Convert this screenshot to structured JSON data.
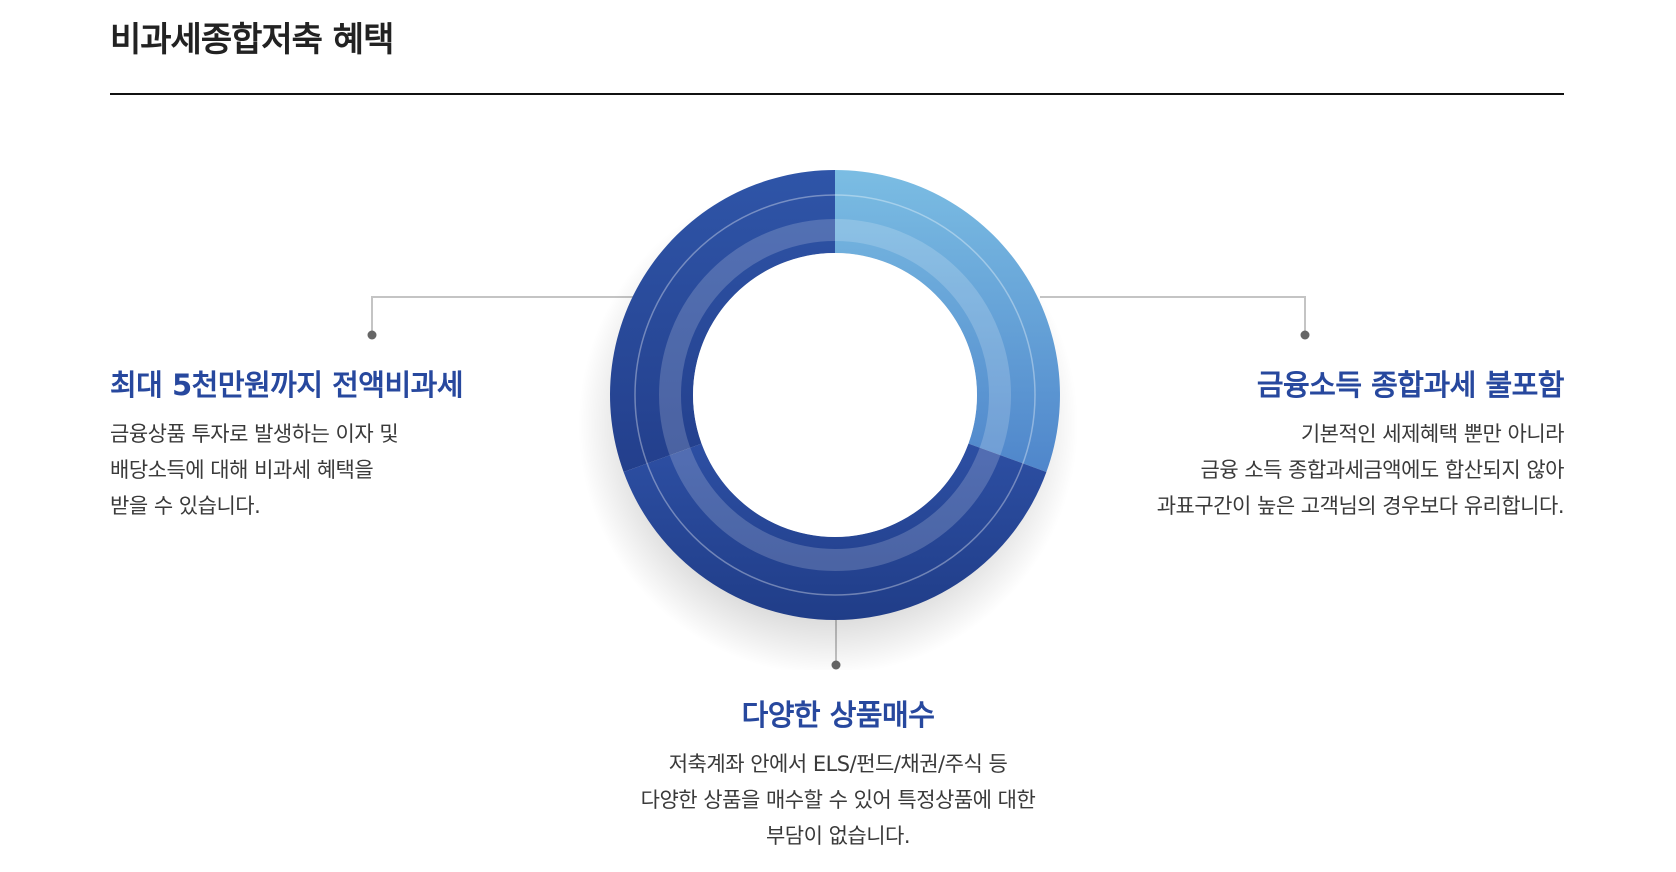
{
  "page": {
    "title": "비과세종합저축 혜택"
  },
  "colors": {
    "title_rule": "#111111",
    "heading": "#27489e",
    "body_text": "#3a3a3a",
    "ring_dark": "#2a4a9c",
    "ring_light": "#6fb3df",
    "connector": "#bbbbbb",
    "connector_dot": "#666666"
  },
  "benefits": [
    {
      "heading": "최대 5천만원까지 전액비과세",
      "lines": [
        "금융상품 투자로 발생하는 이자 및",
        "배당소득에 대해 비과세 혜택을",
        "받을 수 있습니다."
      ]
    },
    {
      "heading": "금융소득 종합과세 불포함",
      "lines": [
        "기본적인 세제혜택 뿐만 아니라",
        "금융 소득 종합과세금액에도 합산되지 않아",
        "과표구간이 높은 고객님의 경우보다 유리합니다."
      ]
    },
    {
      "heading": "다양한 상품매수",
      "lines": [
        "저축계좌 안에서 ELS/펀드/채권/주식 등",
        "다양한 상품을 매수할 수 있어 특정상품에 대한",
        "부담이 없습니다."
      ]
    }
  ]
}
